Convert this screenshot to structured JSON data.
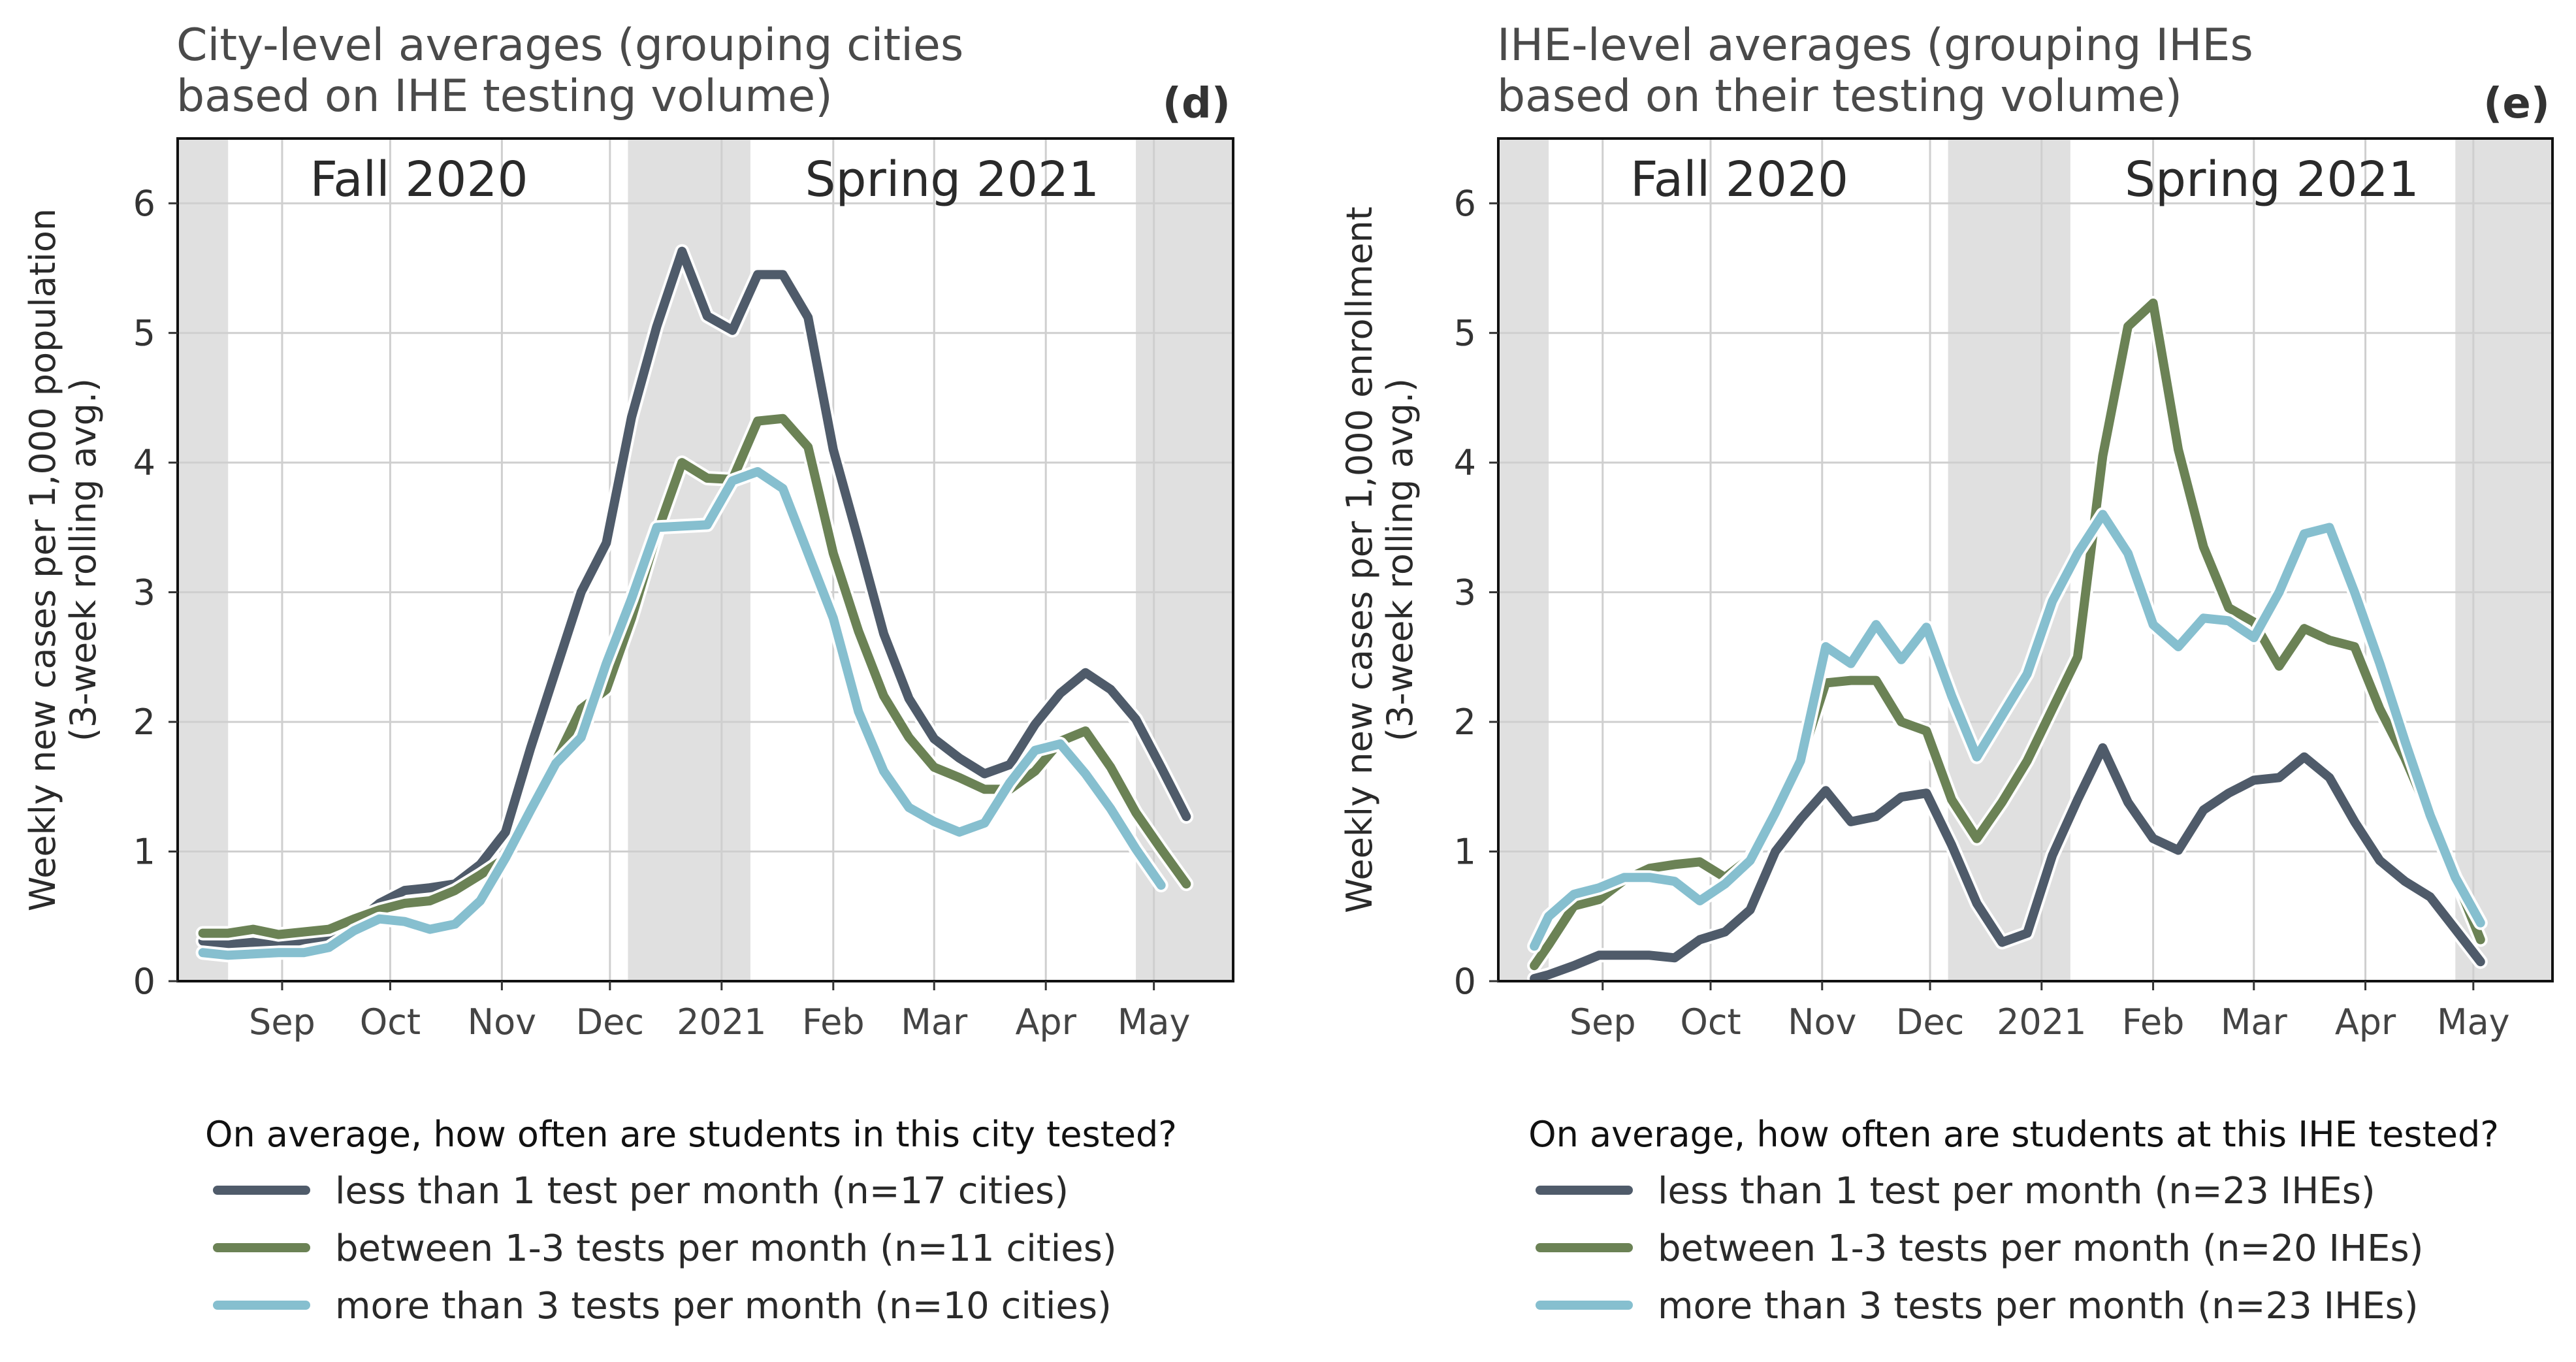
{
  "colors": {
    "less": "#4f5b6a",
    "between": "#6b8255",
    "more": "#86bfcf",
    "shade": "#e0e0e0",
    "grid": "#cfcfcf"
  },
  "chart_data": [
    {
      "type": "line",
      "title": "City-level averages (grouping cities\nbased on IHE testing volume)",
      "tag": "(d)",
      "ylabel": "Weekly new cases per 1,000 population\n(3-week rolling avg.)",
      "xlabel": "",
      "ylim": [
        0,
        6.5
      ],
      "yticks": [
        0,
        1,
        2,
        3,
        4,
        5,
        6
      ],
      "xlim": [
        "2020-08-03",
        "2021-05-23"
      ],
      "xticks": [
        {
          "label": "Sep",
          "date": "2020-09-01"
        },
        {
          "label": "Oct",
          "date": "2020-10-01"
        },
        {
          "label": "Nov",
          "date": "2020-11-01"
        },
        {
          "label": "Dec",
          "date": "2020-12-01"
        },
        {
          "label": "2021",
          "date": "2021-01-01"
        },
        {
          "label": "Feb",
          "date": "2021-02-01"
        },
        {
          "label": "Mar",
          "date": "2021-03-01"
        },
        {
          "label": "Apr",
          "date": "2021-04-01"
        },
        {
          "label": "May",
          "date": "2021-05-01"
        }
      ],
      "shaded": [
        [
          "2020-08-03",
          "2020-08-17"
        ],
        [
          "2020-12-06",
          "2021-01-09"
        ],
        [
          "2021-04-26",
          "2021-05-23"
        ]
      ],
      "seasons": [
        {
          "label": "Fall 2020",
          "date": "2020-10-09"
        },
        {
          "label": "Spring 2021",
          "date": "2021-03-06"
        }
      ],
      "grid": true,
      "legend": {
        "placement": "bottom",
        "title": "On average, how often are students in this city tested?",
        "entries": [
          {
            "key": "less",
            "label": "less than 1 test per month (n=17 cities)"
          },
          {
            "key": "between",
            "label": "between 1-3 tests per month (n=11 cities)"
          },
          {
            "key": "more",
            "label": "more than 3 tests per month (n=10 cities)"
          }
        ]
      },
      "x": [
        "2020-08-10",
        "2020-08-17",
        "2020-08-24",
        "2020-08-31",
        "2020-09-07",
        "2020-09-14",
        "2020-09-21",
        "2020-09-28",
        "2020-10-05",
        "2020-10-12",
        "2020-10-19",
        "2020-10-26",
        "2020-11-02",
        "2020-11-09",
        "2020-11-16",
        "2020-11-23",
        "2020-11-30",
        "2020-12-07",
        "2020-12-14",
        "2020-12-21",
        "2020-12-28",
        "2021-01-04",
        "2021-01-11",
        "2021-01-18",
        "2021-01-25",
        "2021-02-01",
        "2021-02-08",
        "2021-02-15",
        "2021-02-22",
        "2021-03-01",
        "2021-03-08",
        "2021-03-15",
        "2021-03-22",
        "2021-03-29",
        "2021-04-05",
        "2021-04-12",
        "2021-04-19",
        "2021-04-26",
        "2021-05-03",
        "2021-05-10",
        "2021-05-17"
      ],
      "series": [
        {
          "key": "less",
          "values": [
            0.31,
            0.28,
            0.3,
            0.27,
            0.32,
            0.35,
            0.44,
            0.6,
            0.7,
            0.72,
            0.75,
            0.9,
            1.15,
            1.8,
            2.4,
            3.0,
            3.38,
            4.35,
            5.05,
            5.63,
            5.13,
            5.02,
            5.45,
            5.45,
            5.12,
            4.1,
            3.4,
            2.68,
            2.18,
            1.87,
            1.72,
            1.6,
            1.67,
            1.98,
            2.22,
            2.38,
            2.25,
            2.02,
            1.65,
            1.27,
            null
          ]
        },
        {
          "key": "between",
          "values": [
            0.37,
            0.37,
            0.4,
            0.36,
            0.38,
            0.4,
            0.48,
            0.55,
            0.6,
            0.62,
            0.7,
            0.82,
            0.95,
            1.3,
            1.7,
            2.1,
            2.25,
            2.8,
            3.45,
            4.0,
            3.88,
            3.87,
            4.32,
            4.34,
            4.12,
            3.3,
            2.7,
            2.2,
            1.88,
            1.65,
            1.57,
            1.48,
            1.48,
            1.62,
            1.85,
            1.93,
            1.65,
            1.3,
            1.02,
            0.75,
            null
          ]
        },
        {
          "key": "more",
          "values": [
            0.22,
            0.2,
            0.21,
            0.22,
            0.22,
            0.26,
            0.39,
            0.48,
            0.46,
            0.4,
            0.44,
            0.62,
            0.95,
            1.32,
            1.68,
            1.88,
            2.45,
            2.95,
            3.5,
            3.51,
            3.52,
            3.86,
            3.93,
            3.8,
            3.3,
            2.8,
            2.08,
            1.62,
            1.34,
            1.23,
            1.15,
            1.22,
            1.53,
            1.78,
            1.83,
            1.6,
            1.33,
            1.02,
            0.74,
            null,
            null
          ]
        }
      ]
    },
    {
      "type": "line",
      "title": "IHE-level averages (grouping IHEs\nbased on their testing volume)",
      "tag": "(e)",
      "ylabel": "Weekly new cases per 1,000 enrollment\n(3-week rolling avg.)",
      "xlabel": "",
      "ylim": [
        0,
        6.5
      ],
      "yticks": [
        0,
        1,
        2,
        3,
        4,
        5,
        6
      ],
      "xlim": [
        "2020-08-03",
        "2021-05-23"
      ],
      "xticks": [
        {
          "label": "Sep",
          "date": "2020-09-01"
        },
        {
          "label": "Oct",
          "date": "2020-10-01"
        },
        {
          "label": "Nov",
          "date": "2020-11-01"
        },
        {
          "label": "Dec",
          "date": "2020-12-01"
        },
        {
          "label": "2021",
          "date": "2021-01-01"
        },
        {
          "label": "Feb",
          "date": "2021-02-01"
        },
        {
          "label": "Mar",
          "date": "2021-03-01"
        },
        {
          "label": "Apr",
          "date": "2021-04-01"
        },
        {
          "label": "May",
          "date": "2021-05-01"
        }
      ],
      "shaded": [
        [
          "2020-08-03",
          "2020-08-17"
        ],
        [
          "2020-12-06",
          "2021-01-09"
        ],
        [
          "2021-04-26",
          "2021-05-23"
        ]
      ],
      "seasons": [
        {
          "label": "Fall 2020",
          "date": "2020-10-09"
        },
        {
          "label": "Spring 2021",
          "date": "2021-03-06"
        }
      ],
      "grid": true,
      "legend": {
        "placement": "bottom",
        "title": "On average, how often are students at this IHE tested?",
        "entries": [
          {
            "key": "less",
            "label": "less than 1 test per month (n=23 IHEs)"
          },
          {
            "key": "between",
            "label": "between 1-3 tests per month (n=20 IHEs)"
          },
          {
            "key": "more",
            "label": "more than 3 tests per month (n=23 IHEs)"
          }
        ]
      },
      "x": [
        "2020-08-13",
        "2020-08-17",
        "2020-08-24",
        "2020-08-31",
        "2020-09-07",
        "2020-09-14",
        "2020-09-21",
        "2020-09-28",
        "2020-10-05",
        "2020-10-12",
        "2020-10-19",
        "2020-10-26",
        "2020-11-02",
        "2020-11-09",
        "2020-11-16",
        "2020-11-23",
        "2020-11-30",
        "2020-12-07",
        "2020-12-14",
        "2020-12-21",
        "2020-12-28",
        "2021-01-04",
        "2021-01-11",
        "2021-01-18",
        "2021-01-25",
        "2021-02-01",
        "2021-02-08",
        "2021-02-15",
        "2021-02-22",
        "2021-03-01",
        "2021-03-08",
        "2021-03-15",
        "2021-03-22",
        "2021-03-29",
        "2021-04-05",
        "2021-04-12",
        "2021-04-19",
        "2021-04-26",
        "2021-05-03",
        "2021-05-10",
        "2021-05-17"
      ],
      "series": [
        {
          "key": "less",
          "values": [
            0.02,
            0.05,
            0.12,
            0.2,
            0.2,
            0.2,
            0.18,
            0.32,
            0.38,
            0.55,
            1.0,
            1.25,
            1.47,
            1.23,
            1.27,
            1.42,
            1.45,
            1.05,
            0.6,
            0.3,
            0.37,
            0.97,
            1.4,
            1.8,
            1.38,
            1.1,
            1.01,
            1.32,
            1.45,
            1.55,
            1.57,
            1.73,
            1.57,
            1.23,
            0.93,
            0.77,
            0.65,
            0.4,
            0.15,
            null,
            null
          ]
        },
        {
          "key": "between",
          "values": [
            0.12,
            0.28,
            0.58,
            0.63,
            0.78,
            0.87,
            0.9,
            0.92,
            0.8,
            0.95,
            1.3,
            1.7,
            2.3,
            2.32,
            2.32,
            2.0,
            1.93,
            1.4,
            1.1,
            1.38,
            1.7,
            2.1,
            2.5,
            4.05,
            5.05,
            5.23,
            4.1,
            3.35,
            2.88,
            2.77,
            2.43,
            2.72,
            2.63,
            2.58,
            2.1,
            1.72,
            1.27,
            0.8,
            0.32,
            null,
            null
          ]
        },
        {
          "key": "more",
          "values": [
            0.27,
            0.5,
            0.67,
            0.72,
            0.8,
            0.8,
            0.77,
            0.62,
            0.75,
            0.93,
            1.3,
            1.7,
            2.58,
            2.45,
            2.75,
            2.48,
            2.73,
            2.2,
            1.73,
            2.05,
            2.37,
            2.93,
            3.3,
            3.6,
            3.3,
            2.75,
            2.58,
            2.8,
            2.78,
            2.65,
            3.0,
            3.45,
            3.5,
            3.0,
            2.45,
            1.85,
            1.28,
            0.8,
            0.45,
            null,
            null
          ]
        }
      ]
    }
  ]
}
